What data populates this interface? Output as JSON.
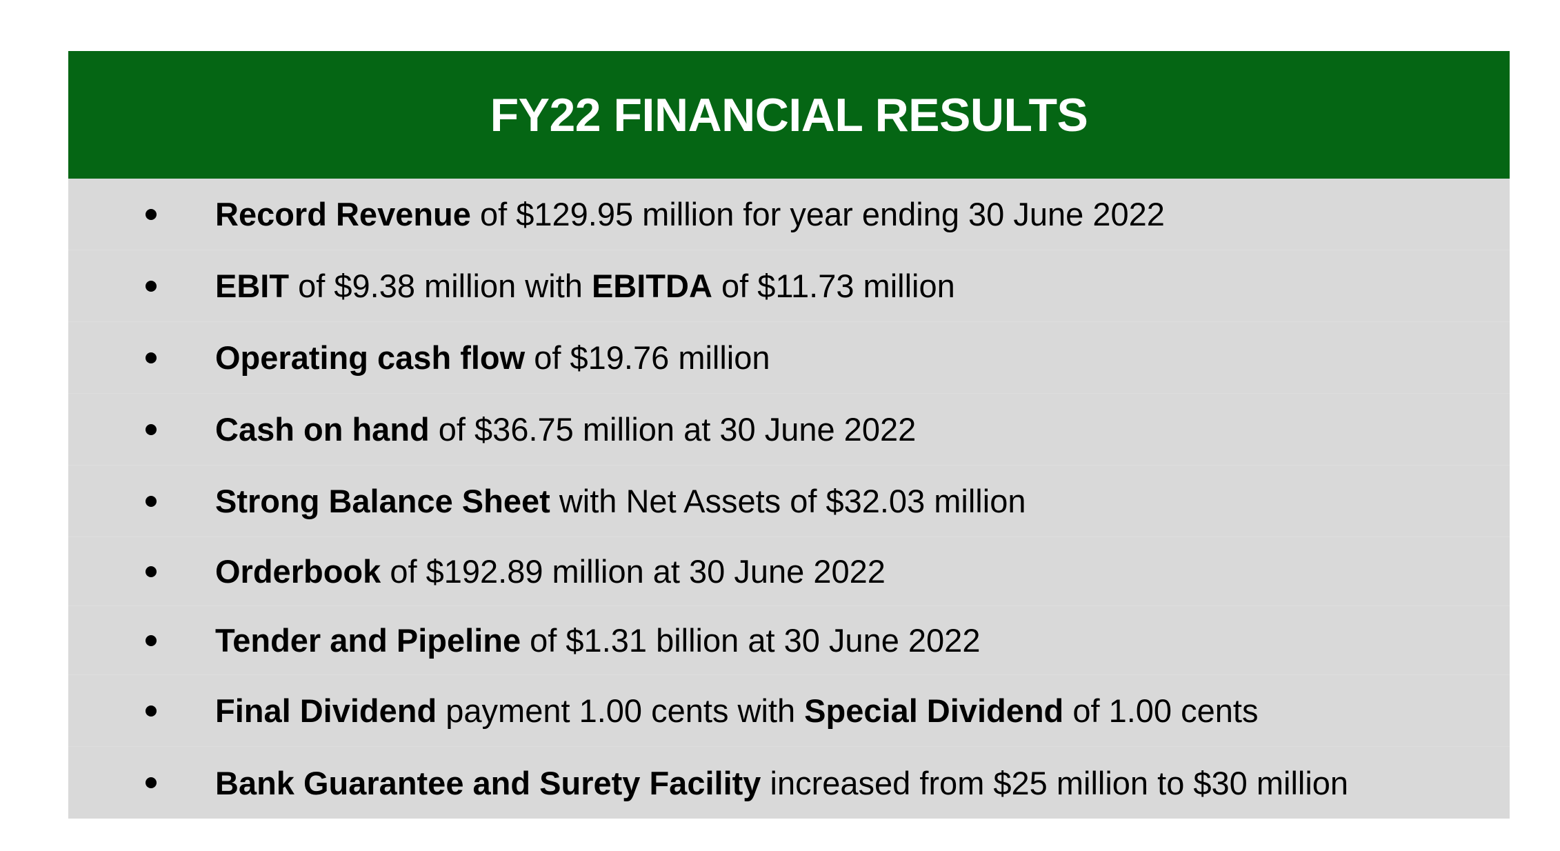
{
  "banner": {
    "title": "FY22 FINANCIAL RESULTS"
  },
  "results": [
    {
      "bold1": "Record Revenue",
      "text1": " of $129.95 million for year ending 30 June 2022"
    },
    {
      "bold1": "EBIT",
      "text1": " of $9.38 million with ",
      "bold2": "EBITDA",
      "text2": " of $11.73 million"
    },
    {
      "bold1": "Operating cash flow",
      "text1": " of $19.76 million"
    },
    {
      "bold1": "Cash on hand",
      "text1": " of $36.75 million at 30 June 2022"
    },
    {
      "bold1": "Strong Balance Sheet",
      "text1": " with Net Assets of $32.03 million"
    },
    {
      "bold1": "Orderbook",
      "text1": " of $192.89 million at 30 June 2022"
    },
    {
      "bold1": "Tender and Pipeline",
      "text1": " of $1.31 billion at 30 June 2022"
    },
    {
      "bold1": "Final Dividend",
      "text1": " payment 1.00 cents with ",
      "bold2": "Special Dividend",
      "text2": " of 1.00 cents"
    },
    {
      "bold1": "Bank Guarantee and Surety Facility",
      "text1": " increased from $25 million to $30 million"
    }
  ],
  "colors": {
    "banner": "#056614",
    "panel": "#d9d9d9",
    "title_text": "#ffffff"
  }
}
